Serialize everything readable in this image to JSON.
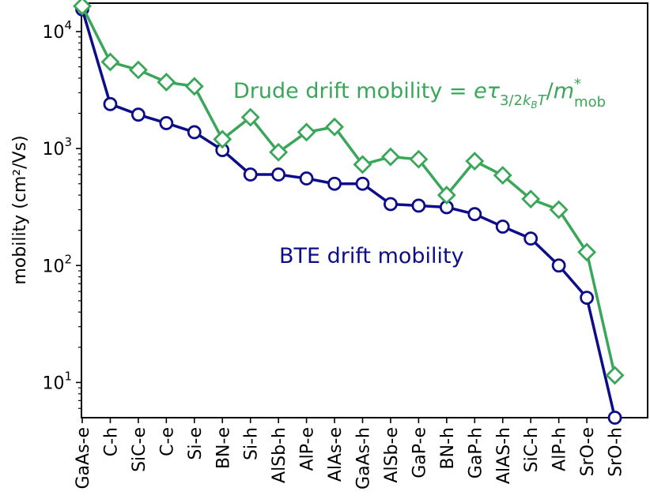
{
  "chart_data": {
    "type": "line",
    "yscale": "log",
    "ylim": [
      5,
      17500
    ],
    "ylabel": "mobility (cm²/Vs)",
    "xlabel": "",
    "categories": [
      "GaAs-e",
      "C-h",
      "SiC-e",
      "C-e",
      "Si-e",
      "BN-e",
      "Si-h",
      "AlSb-h",
      "AlP-e",
      "AlAs-e",
      "GaAs-h",
      "AlSb-e",
      "GaP-e",
      "BN-h",
      "GaP-h",
      "AlAS-h",
      "SiC-h",
      "AlP-h",
      "SrO-e",
      "SrO-h"
    ],
    "yticks": [
      {
        "value": 10,
        "base": "10",
        "exp": "1"
      },
      {
        "value": 100,
        "base": "10",
        "exp": "2"
      },
      {
        "value": 1000,
        "base": "10",
        "exp": "3"
      },
      {
        "value": 10000,
        "base": "10",
        "exp": "4"
      }
    ],
    "series": [
      {
        "name": "BTE drift mobility",
        "color": "#0d0d8a",
        "marker": "circle",
        "values": [
          15500,
          2400,
          1950,
          1650,
          1380,
          970,
          600,
          600,
          555,
          500,
          500,
          335,
          325,
          315,
          275,
          215,
          170,
          100,
          53,
          5
        ]
      },
      {
        "name": "Drude drift mobility",
        "color": "#3aa65a",
        "marker": "diamond",
        "values": [
          16500,
          5500,
          4700,
          3700,
          3400,
          1200,
          1850,
          930,
          1380,
          1530,
          730,
          850,
          810,
          400,
          780,
          590,
          370,
          300,
          130,
          11.5
        ]
      }
    ],
    "annotations": {
      "drude_prefix": "Drude drift mobility = ",
      "drude_e": "e",
      "drude_tau": "τ",
      "drude_tau_sub": "3/2",
      "drude_kb_k": "k",
      "drude_kb_sub": "B",
      "drude_T": "T",
      "drude_slash": "/",
      "drude_m": "m",
      "drude_m_sup": "*",
      "drude_m_sub": "mob",
      "bte": "BTE drift mobility"
    }
  }
}
